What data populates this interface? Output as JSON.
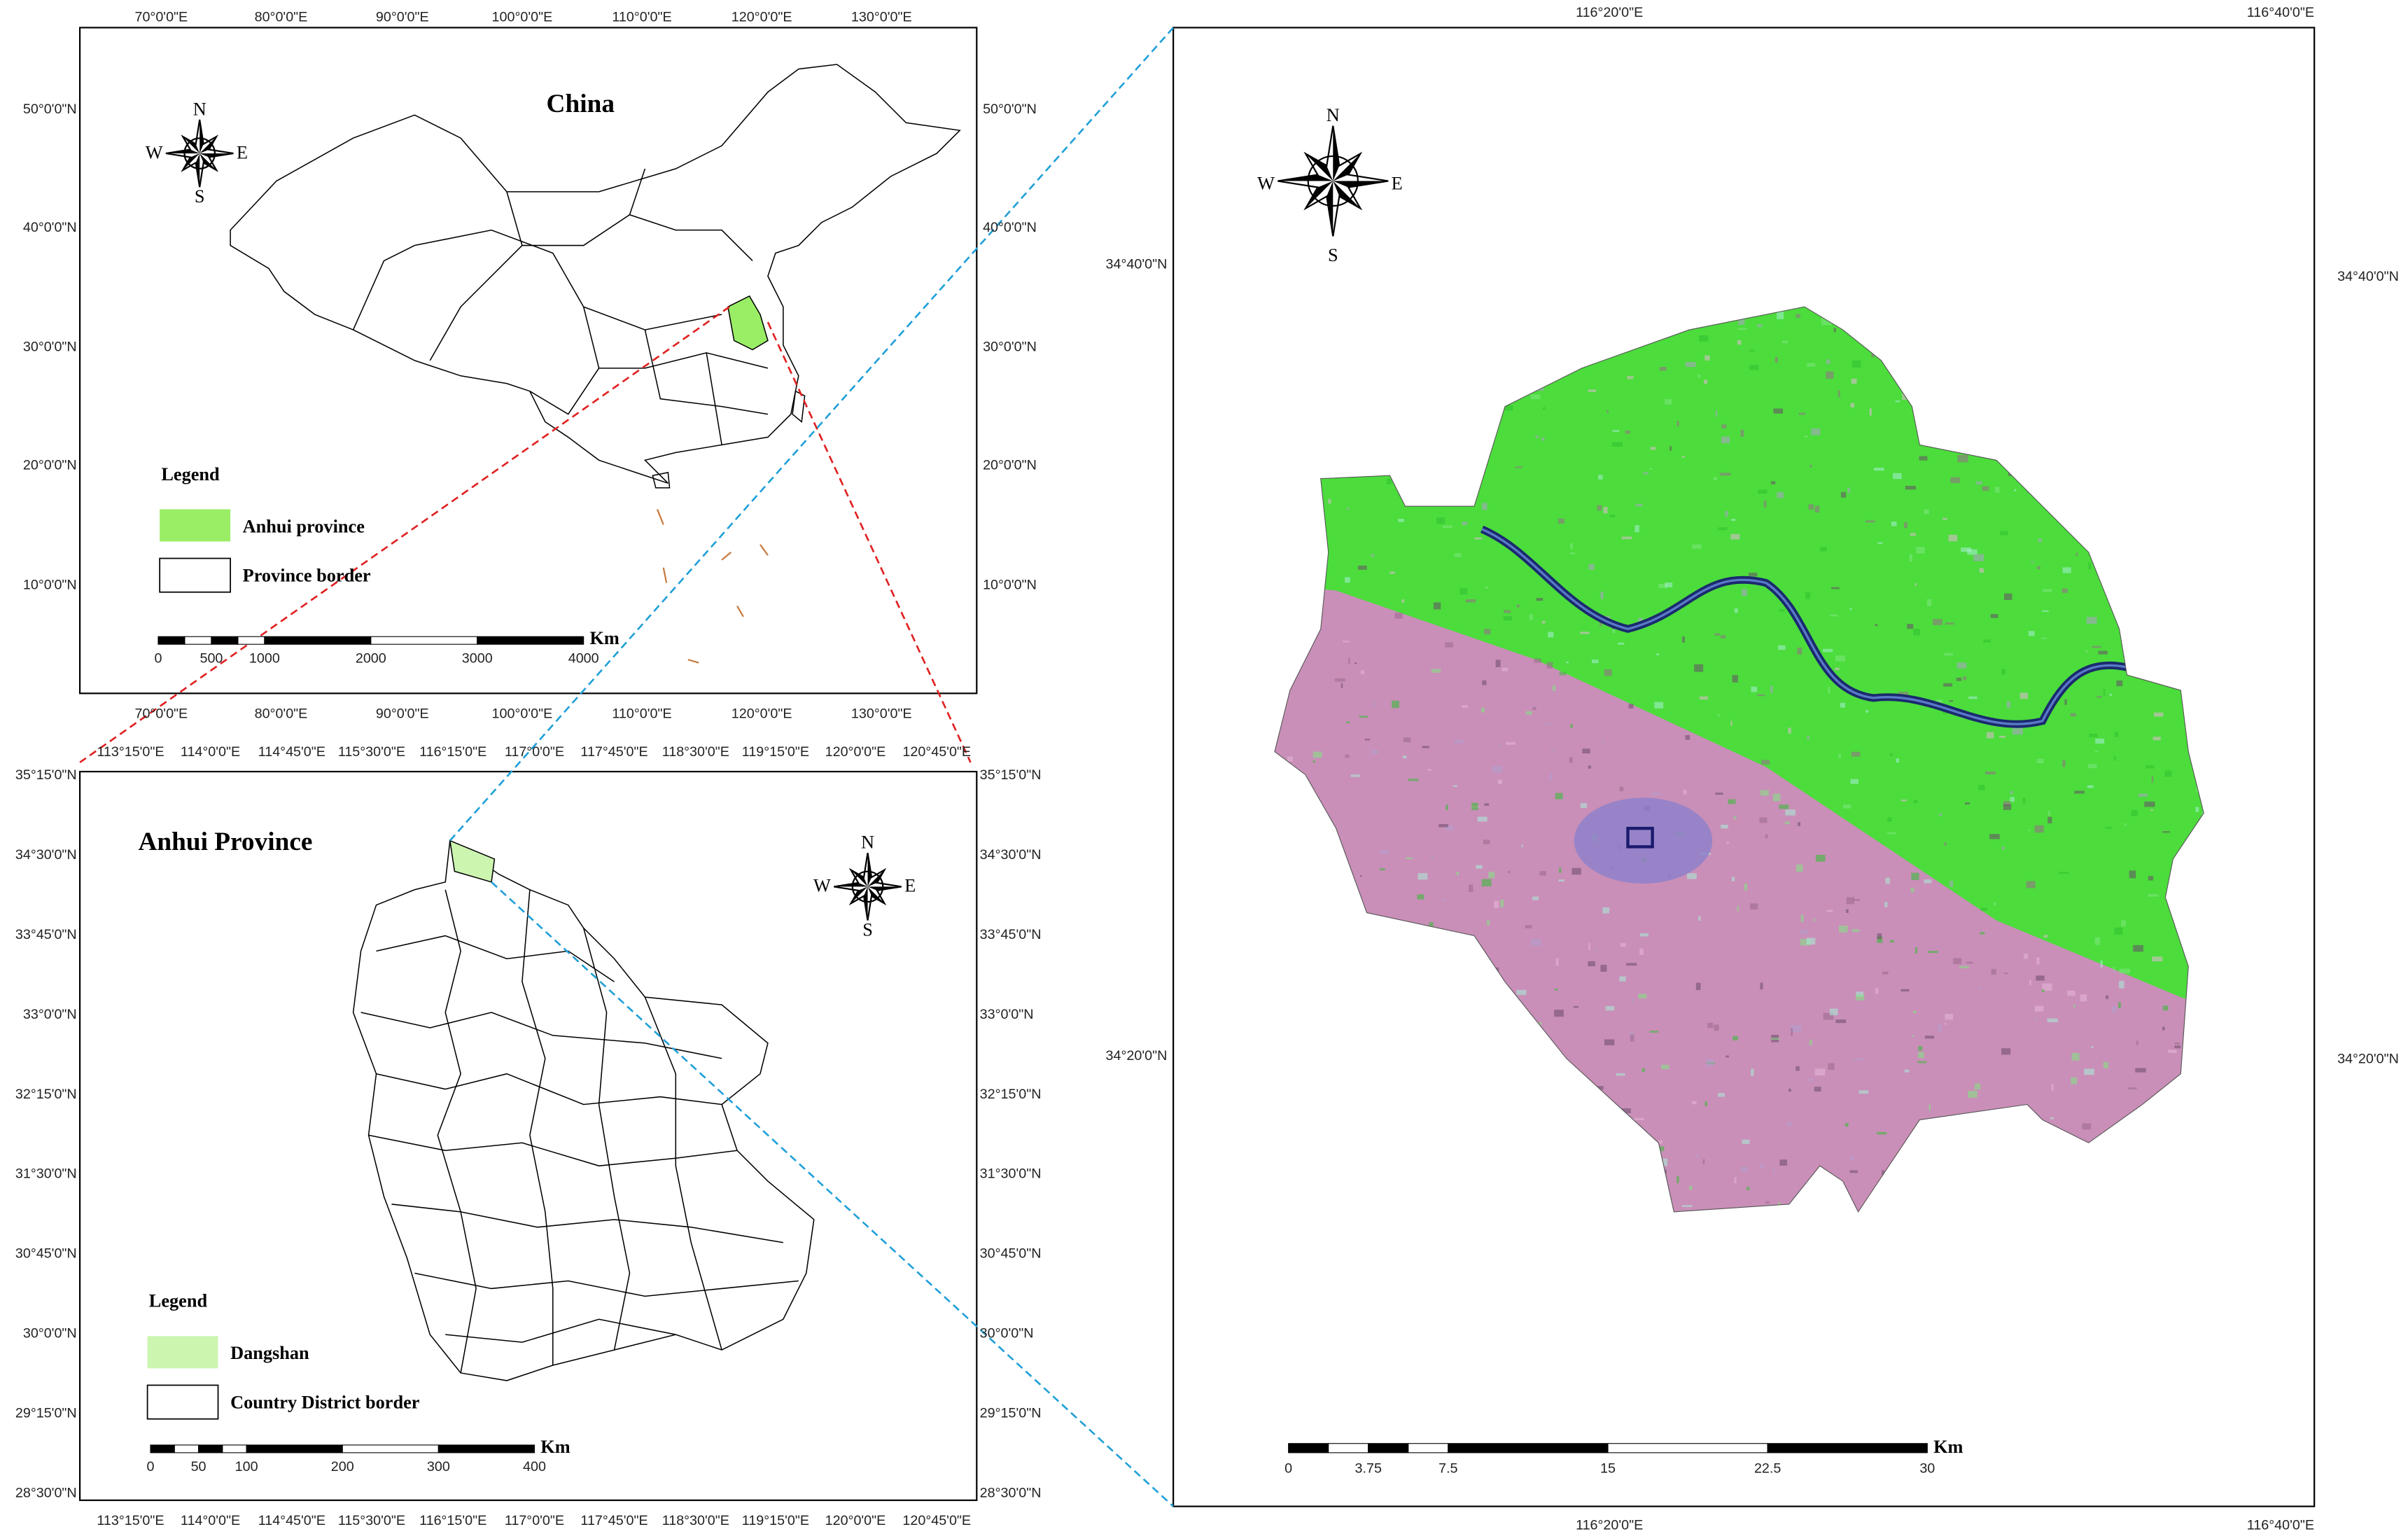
{
  "china_map": {
    "title": "China",
    "compass": {
      "n": "N",
      "s": "S",
      "e": "E",
      "w": "W"
    },
    "legend": {
      "title": "Legend",
      "items": [
        "Anhui province",
        "Province border"
      ]
    },
    "scale_bar": {
      "unit": "Km",
      "ticks": [
        0,
        500,
        1000,
        2000,
        3000,
        4000
      ]
    },
    "lon_labels": [
      "70°0'0\"E",
      "80°0'0\"E",
      "90°0'0\"E",
      "100°0'0\"E",
      "110°0'0\"E",
      "120°0'0\"E",
      "130°0'0\"E"
    ],
    "lat_labels": [
      "50°0'0\"N",
      "40°0'0\"N",
      "30°0'0\"N",
      "20°0'0\"N",
      "10°0'0\"N"
    ]
  },
  "anhui_map": {
    "title": "Anhui Province",
    "compass": {
      "n": "N",
      "s": "S",
      "e": "E",
      "w": "W"
    },
    "legend": {
      "title": "Legend",
      "items": [
        "Dangshan",
        "Country District border"
      ]
    },
    "scale_bar": {
      "unit": "Km",
      "ticks": [
        0,
        50,
        100,
        200,
        300,
        400
      ]
    },
    "lon_labels": [
      "113°15'0\"E",
      "114°0'0\"E",
      "114°45'0\"E",
      "115°30'0\"E",
      "116°15'0\"E",
      "117°0'0\"E",
      "117°45'0\"E",
      "118°30'0\"E",
      "119°15'0\"E",
      "120°0'0\"E",
      "120°45'0\"E"
    ],
    "lat_labels": [
      "35°15'0\"N",
      "34°30'0\"N",
      "33°45'0\"N",
      "33°0'0\"N",
      "32°15'0\"N",
      "31°30'0\"N",
      "30°45'0\"N",
      "30°0'0\"N",
      "29°15'0\"N",
      "28°30'0\"N"
    ]
  },
  "dangshan_map": {
    "compass": {
      "n": "N",
      "s": "S",
      "e": "E",
      "w": "W"
    },
    "scale_bar": {
      "unit": "Km",
      "ticks": [
        0,
        3.75,
        7.5,
        15,
        22.5,
        30
      ]
    },
    "lon_labels": [
      "116°20'0\"E",
      "116°40'0\"E"
    ],
    "lat_labels": [
      "34°40'0\"N",
      "34°20'0\"N"
    ]
  }
}
